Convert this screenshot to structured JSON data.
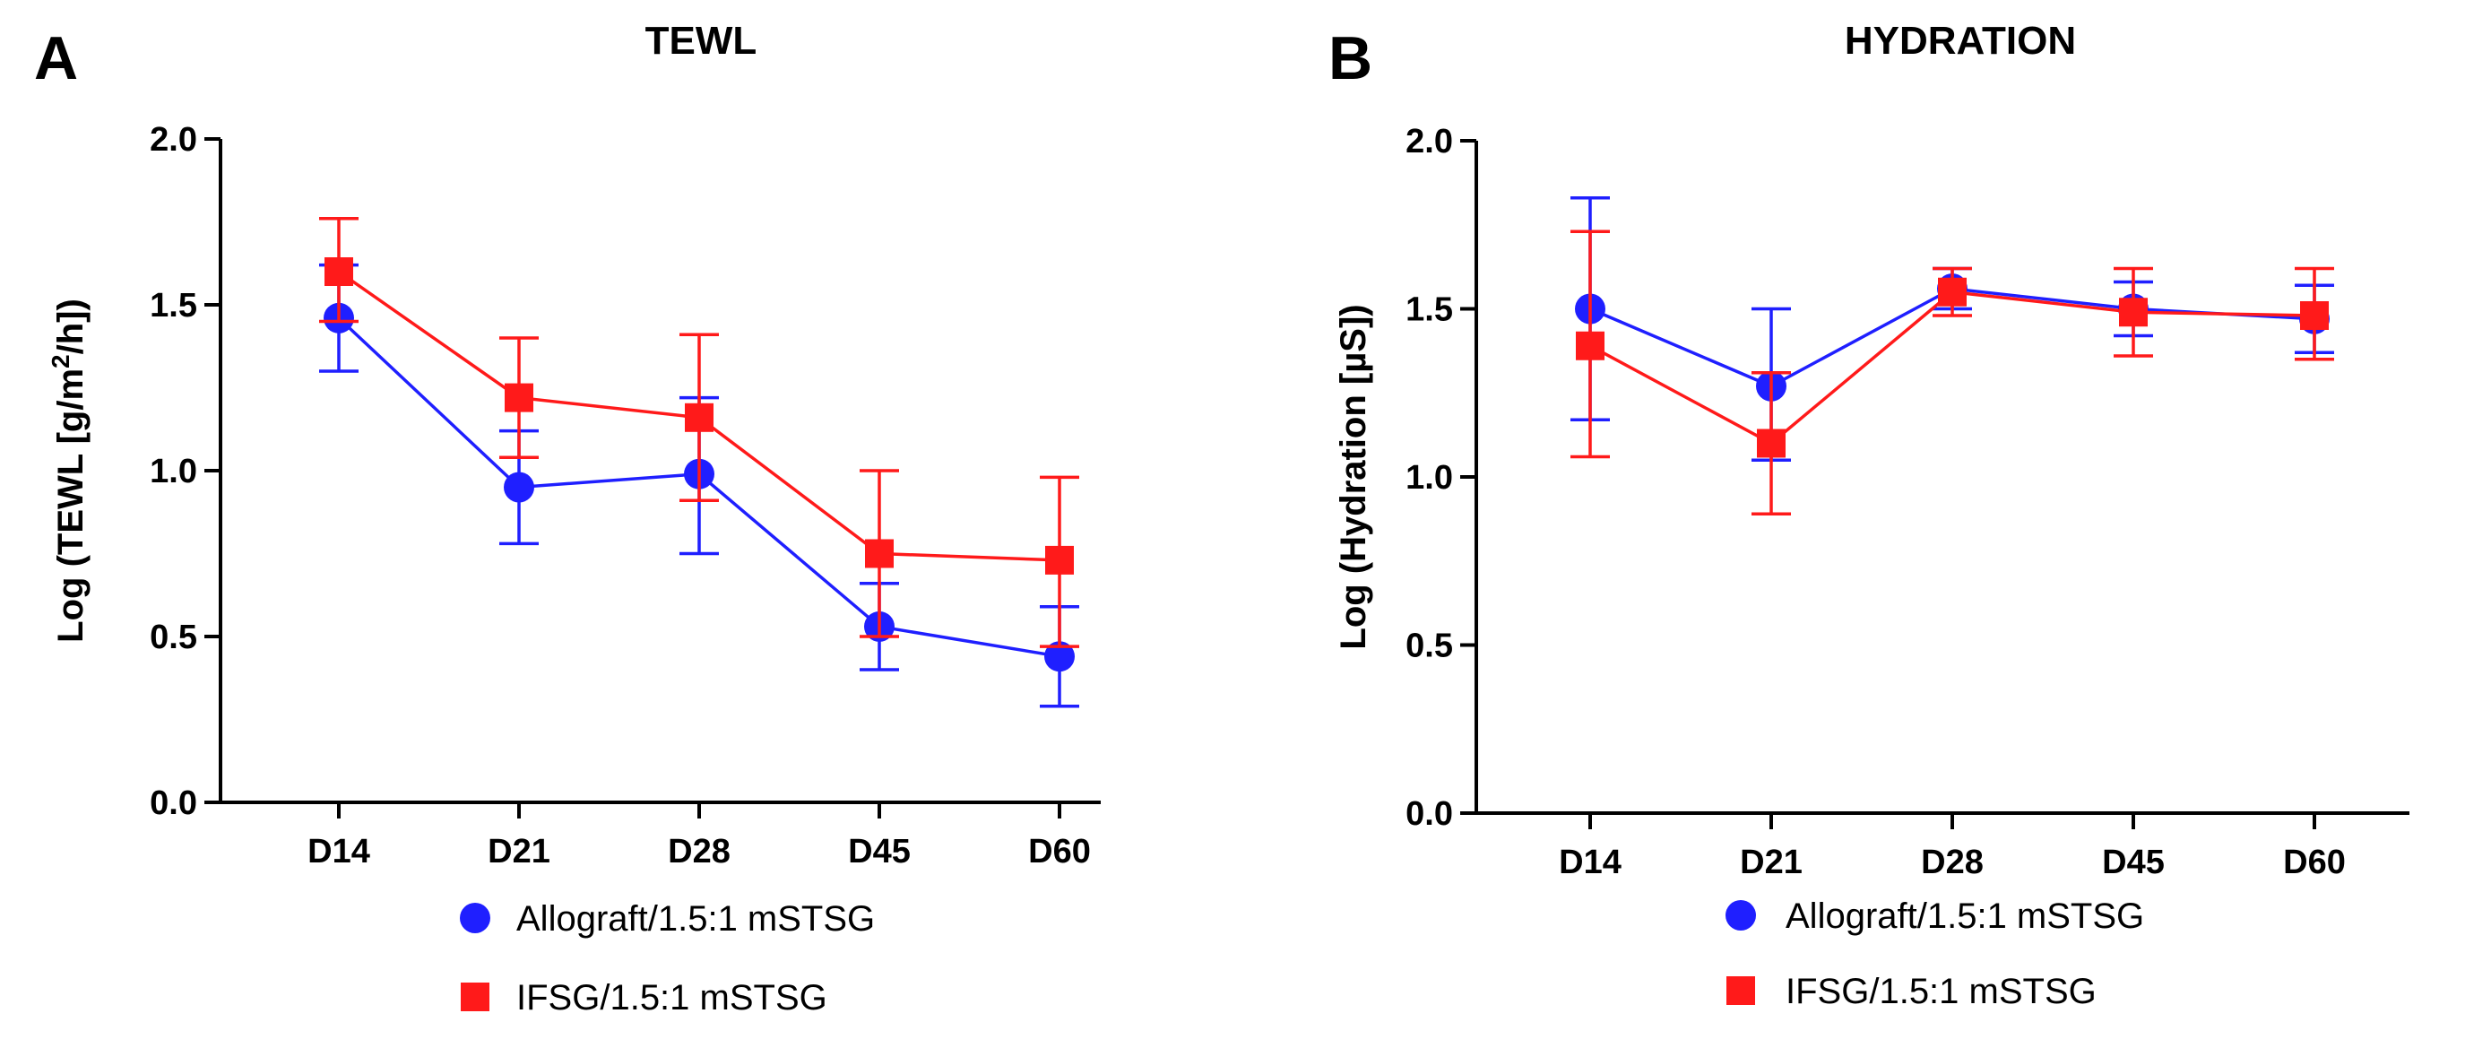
{
  "colors": {
    "series1": "#1f1fff",
    "series2": "#ff1a1a",
    "axis": "#000000"
  },
  "chart_data": [
    {
      "type": "line",
      "panel_letter": "A",
      "title": "TEWL",
      "xlabel": "",
      "ylabel_main": "Log (TEWL [g/m",
      "ylabel_sup": "2",
      "ylabel_end": "/h])",
      "categories": [
        "D14",
        "D21",
        "D28",
        "D45",
        "D60"
      ],
      "ylim": [
        0.0,
        2.0
      ],
      "yticks": [
        "0.0",
        "0.5",
        "1.0",
        "1.5",
        "2.0"
      ],
      "legend_position": "bottom",
      "series": [
        {
          "name": "Allograft/1.5:1 mSTSG",
          "marker": "circle",
          "values": [
            1.46,
            0.95,
            0.99,
            0.53,
            0.44
          ],
          "err_low": [
            1.3,
            0.78,
            0.75,
            0.4,
            0.29
          ],
          "err_high": [
            1.62,
            1.12,
            1.22,
            0.66,
            0.59
          ]
        },
        {
          "name": "IFSG/1.5:1 mSTSG",
          "marker": "square",
          "values": [
            1.6,
            1.22,
            1.16,
            0.75,
            0.73
          ],
          "err_low": [
            1.45,
            1.04,
            0.91,
            0.5,
            0.47
          ],
          "err_high": [
            1.76,
            1.4,
            1.41,
            1.0,
            0.98
          ]
        }
      ]
    },
    {
      "type": "line",
      "panel_letter": "B",
      "title": "HYDRATION",
      "xlabel": "",
      "ylabel_main": "Log (Hydration [µS])",
      "ylabel_sup": "",
      "ylabel_end": "",
      "categories": [
        "D14",
        "D21",
        "D28",
        "D45",
        "D60"
      ],
      "ylim": [
        0.0,
        2.0
      ],
      "yticks": [
        "0.0",
        "0.5",
        "1.0",
        "1.5",
        "2.0"
      ],
      "legend_position": "bottom",
      "series": [
        {
          "name": "Allograft/1.5:1 mSTSG",
          "marker": "circle",
          "values": [
            1.5,
            1.27,
            1.56,
            1.5,
            1.47
          ],
          "err_low": [
            1.17,
            1.05,
            1.5,
            1.42,
            1.37
          ],
          "err_high": [
            1.83,
            1.5,
            1.62,
            1.58,
            1.57
          ]
        },
        {
          "name": "IFSG/1.5:1 mSTSG",
          "marker": "square",
          "values": [
            1.39,
            1.1,
            1.55,
            1.49,
            1.48
          ],
          "err_low": [
            1.06,
            0.89,
            1.48,
            1.36,
            1.35
          ],
          "err_high": [
            1.73,
            1.31,
            1.62,
            1.62,
            1.62
          ]
        }
      ]
    }
  ]
}
